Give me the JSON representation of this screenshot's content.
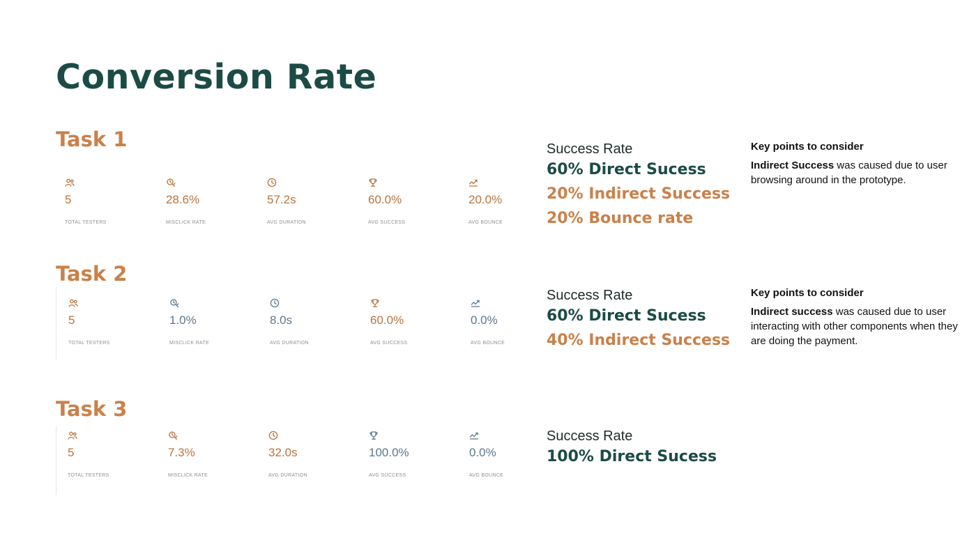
{
  "page": {
    "title": "Conversion Rate"
  },
  "tasks": [
    {
      "heading": "Task 1",
      "stats": [
        {
          "icon": "users-icon",
          "value": "5",
          "label": "TOTAL TESTERS",
          "color": "#b8743f"
        },
        {
          "icon": "misclick-icon",
          "value": "28.6%",
          "label": "MISCLICK RATE",
          "color": "#b8743f"
        },
        {
          "icon": "clock-icon",
          "value": "57.2s",
          "label": "AVG DURATION",
          "color": "#b8743f"
        },
        {
          "icon": "trophy-icon",
          "value": "60.0%",
          "label": "AVG SUCCESS",
          "color": "#b8743f"
        },
        {
          "icon": "bounce-icon",
          "value": "20.0%",
          "label": "AVG BOUNCE",
          "color": "#b8743f"
        }
      ],
      "success_rate_label": "Success Rate",
      "success_lines": [
        {
          "text": "60% Direct Sucess",
          "color": "#1c4b45"
        },
        {
          "text": "20% Indirect Success",
          "color": "#c9814a"
        },
        {
          "text": "20% Bounce rate",
          "color": "#c9814a"
        }
      ],
      "key_points": {
        "title": "Key points to consider",
        "bold": "Indirect Success",
        "text": " was caused due to user browsing around in the prototype."
      }
    },
    {
      "heading": "Task 2",
      "stats": [
        {
          "icon": "users-icon",
          "value": "5",
          "label": "TOTAL TESTERS",
          "color": "#b8743f"
        },
        {
          "icon": "misclick-icon",
          "value": "1.0%",
          "label": "MISCLICK RATE",
          "color": "#5d7690"
        },
        {
          "icon": "clock-icon",
          "value": "8.0s",
          "label": "AVG DURATION",
          "color": "#5d7690"
        },
        {
          "icon": "trophy-icon",
          "value": "60.0%",
          "label": "AVG SUCCESS",
          "color": "#b8743f"
        },
        {
          "icon": "bounce-icon",
          "value": "0.0%",
          "label": "AVG BOUNCE",
          "color": "#5d7690"
        }
      ],
      "success_rate_label": "Success Rate",
      "success_lines": [
        {
          "text": "60% Direct Sucess",
          "color": "#1c4b45"
        },
        {
          "text": "40% Indirect Success",
          "color": "#c9814a"
        }
      ],
      "key_points": {
        "title": "Key points to consider",
        "bold": "Indirect success",
        "text": " was caused due to user interacting with other components when they are doing the payment."
      }
    },
    {
      "heading": "Task 3",
      "stats": [
        {
          "icon": "users-icon",
          "value": "5",
          "label": "TOTAL TESTERS",
          "color": "#b8743f"
        },
        {
          "icon": "misclick-icon",
          "value": "7.3%",
          "label": "MISCLICK RATE",
          "color": "#b8743f"
        },
        {
          "icon": "clock-icon",
          "value": "32.0s",
          "label": "AVG DURATION",
          "color": "#b8743f"
        },
        {
          "icon": "trophy-icon",
          "value": "100.0%",
          "label": "AVG SUCCESS",
          "color": "#5d7690"
        },
        {
          "icon": "bounce-icon",
          "value": "0.0%",
          "label": "AVG BOUNCE",
          "color": "#5d7690"
        }
      ],
      "success_rate_label": "Success Rate",
      "success_lines": [
        {
          "text": "100% Direct Sucess",
          "color": "#1c4b45"
        }
      ]
    }
  ]
}
